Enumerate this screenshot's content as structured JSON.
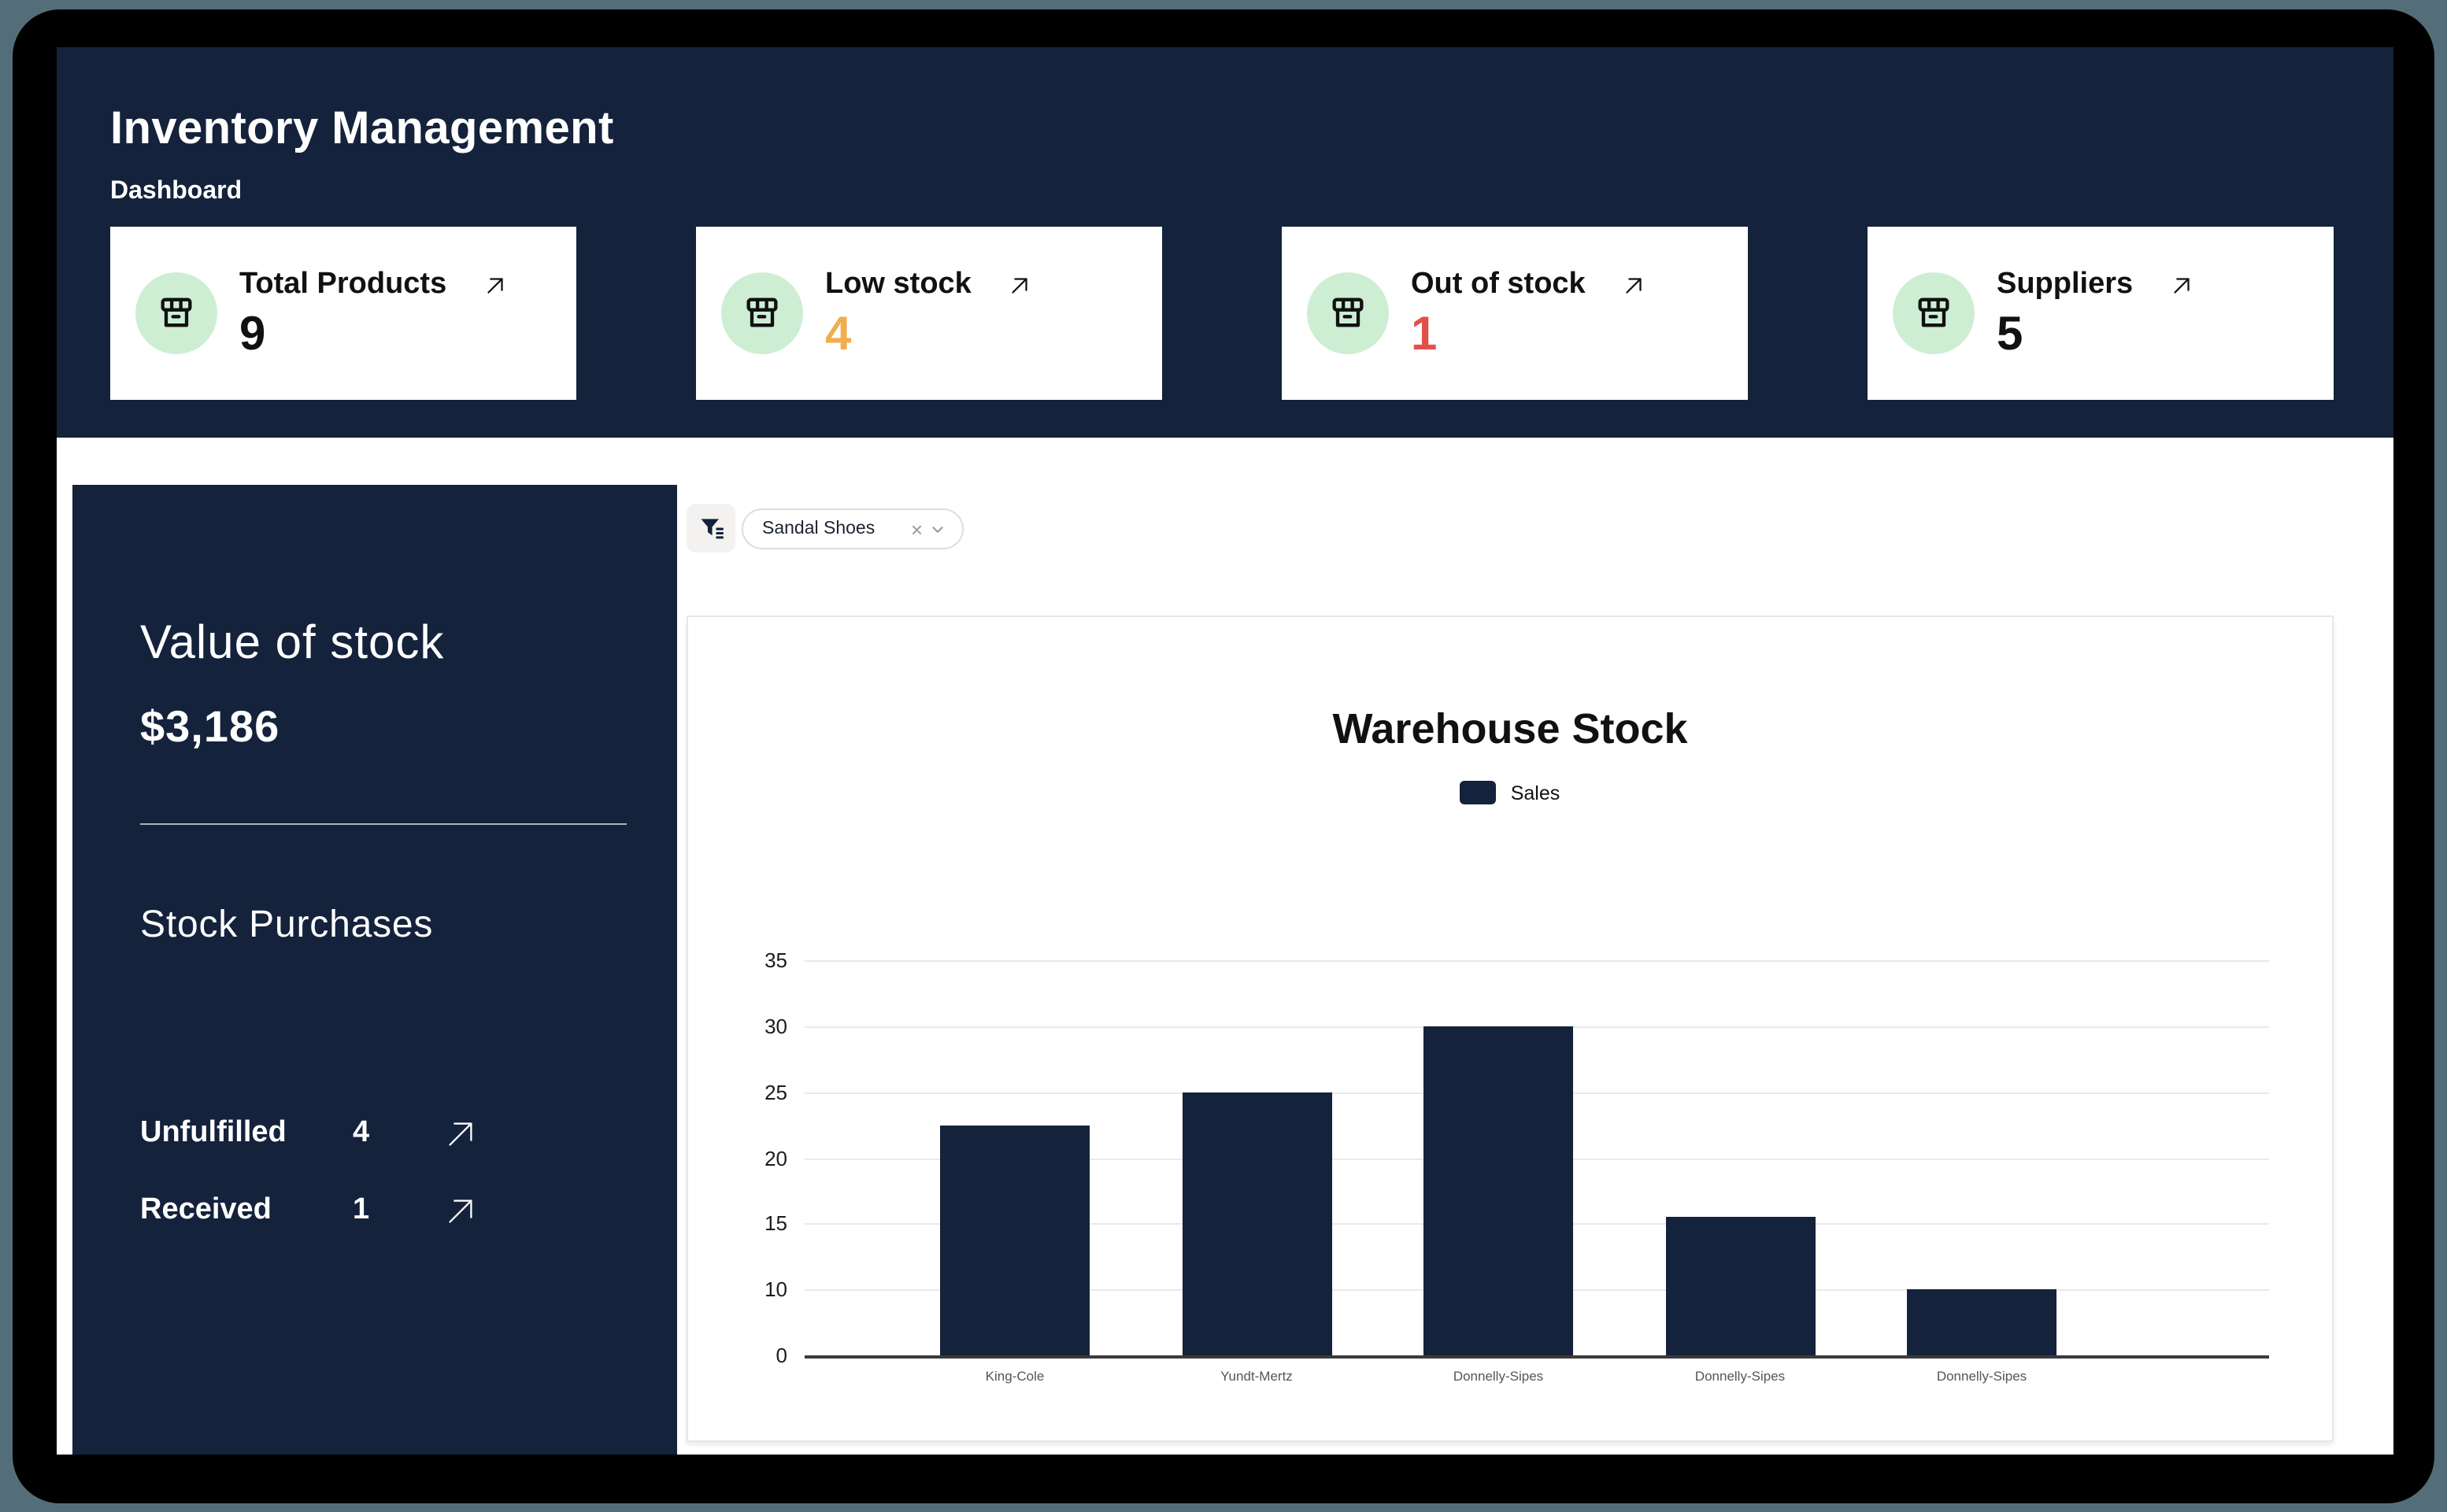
{
  "page": {
    "title": "Inventory Management",
    "subtitle": "Dashboard"
  },
  "colors": {
    "outer_background": "#546E79",
    "device_frame": "#000000",
    "navy": "#15223C",
    "card_background": "#FFFFFF",
    "icon_badge_green": "#CDEED3",
    "low_stock_orange": "#F0AE4E",
    "out_of_stock_red": "#E25149"
  },
  "stat_cards": [
    {
      "label": "Total Products",
      "value": "9",
      "value_color": "#111111",
      "icon": "store-icon"
    },
    {
      "label": "Low stock",
      "value": "4",
      "value_color": "#F0AE4E",
      "icon": "store-icon"
    },
    {
      "label": "Out of stock",
      "value": "1",
      "value_color": "#E25149",
      "icon": "store-icon"
    },
    {
      "label": "Suppliers",
      "value": "5",
      "value_color": "#111111",
      "icon": "store-icon"
    }
  ],
  "sidebar": {
    "heading": "Value of stock",
    "amount": "$3,186",
    "section_title": "Stock Purchases",
    "rows": [
      {
        "label": "Unfulfilled",
        "value": "4"
      },
      {
        "label": "Received",
        "value": "1"
      }
    ]
  },
  "filter": {
    "chip_label": "Sandal Shoes",
    "clear_glyph": "×"
  },
  "chart_data": {
    "type": "bar",
    "title": "Warehouse Stock",
    "legend": [
      "Sales"
    ],
    "legend_position": "top",
    "categories": [
      "King-Cole",
      "Yundt-Mertz",
      "Donnelly-Sipes",
      "Donnelly-Sipes",
      "Donnelly-Sipes"
    ],
    "series": [
      {
        "name": "Sales",
        "values": [
          22.5,
          25,
          30,
          15.5,
          10
        ]
      }
    ],
    "y_ticks": [
      35,
      30,
      25,
      20,
      15,
      10,
      0
    ],
    "ylim": [
      0,
      35
    ],
    "grid": true,
    "bar_color": "#15223C",
    "xlabel": "",
    "ylabel": ""
  }
}
